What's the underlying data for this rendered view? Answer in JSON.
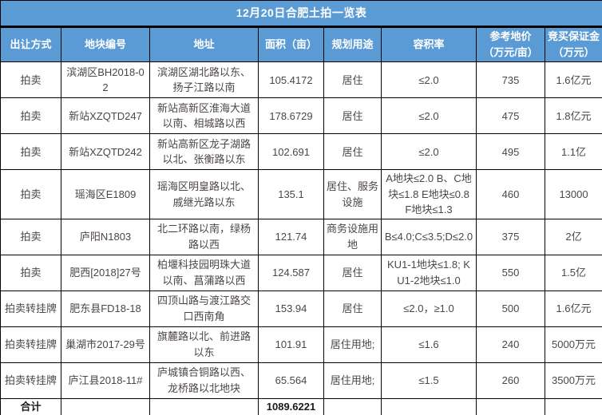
{
  "title": "12月20日合肥土拍一览表",
  "colors": {
    "header_bg": "#5b9bd5",
    "header_text": "#ffffff",
    "body_text": "#4c4644",
    "total_text": "#1a1a1a",
    "border": "#000000",
    "row_bg": "#ffffff"
  },
  "table": {
    "columns": [
      {
        "line1": "出让方式",
        "line2": ""
      },
      {
        "line1": "地块编号",
        "line2": ""
      },
      {
        "line1": "地址",
        "line2": ""
      },
      {
        "line1": "面积（亩）",
        "line2": ""
      },
      {
        "line1": "规划用途",
        "line2": ""
      },
      {
        "line1": "容积率",
        "line2": ""
      },
      {
        "line1": "参考地价",
        "line2": "（万元/亩）"
      },
      {
        "line1": "竞买保证金",
        "line2": "（万元）"
      }
    ],
    "rows": [
      [
        "拍卖",
        "滨湖区BH2018-02",
        "滨湖区湖北路以东、扬子江路以南",
        "105.4172",
        "居住",
        "≤2.0",
        "735",
        "1.6亿元"
      ],
      [
        "拍卖",
        "新站XZQTD247",
        "新站高新区淮海大道以南、相城路以西",
        "178.6729",
        "居住",
        "≤2.0",
        "475",
        "1.8亿元"
      ],
      [
        "拍卖",
        "新站XZQTD242",
        "新站高新区龙子湖路以北、张衡路以东",
        "102.691",
        "居住",
        "≤2.0",
        "495",
        "1.1亿"
      ],
      [
        "拍卖",
        "瑶海区E1809",
        "瑶海区明皇路以北、戚继光路以东",
        "135.1",
        "居住、服务设施",
        "A地块≤2.0 B、C地块≤1.8 E地块≤0.8 F地块≤1.3",
        "460",
        "13000"
      ],
      [
        "拍卖",
        "庐阳N1803",
        "北二环路以南，绿杨路以西",
        "121.74",
        "商务设施用地",
        "B≤4.0;C≤3.5;D≤2.0",
        "375",
        "2亿"
      ],
      [
        "拍卖",
        "肥西[2018]27号",
        "柏堰科技园明珠大道以南、菖蒲路以西",
        "124.587",
        "居住",
        "KU1-1地块≤1.8; KU1-2地块≤1.0",
        "550",
        "1.5亿"
      ],
      [
        "拍卖转挂牌",
        "肥东县FD18-18",
        "四顶山路与渡江路交口西南角",
        "153.94",
        "居住",
        "≤2.0，≥1.0",
        "500",
        "1.6亿元"
      ],
      [
        "拍卖转挂牌",
        "巢湖市2017-29号",
        "旗麓路以北、前进路以东",
        "101.91",
        "居住用地;",
        "≤1.6",
        "240",
        "5000万元"
      ],
      [
        "拍卖转挂牌",
        "庐江县2018-11#",
        "庐城镇合铜路以西、龙桥路以北地块",
        "65.564",
        "居住用地;",
        "≤1.5",
        "260",
        "3500万元"
      ]
    ],
    "total": {
      "label": "合计",
      "area": "1089.6221"
    }
  }
}
